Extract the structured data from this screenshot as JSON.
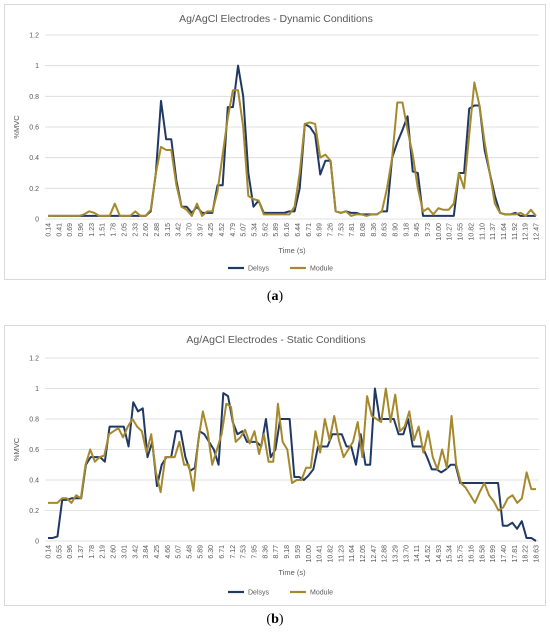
{
  "captions": {
    "a": "a",
    "b": "b"
  },
  "chart_data": [
    {
      "type": "line",
      "title": "Ag/AgCl Electrodes - Dynamic Conditions",
      "xlabel": "Time (s)",
      "ylabel": "%MVC",
      "ylim": [
        0,
        1.2
      ],
      "yticks": [
        "0",
        "0.2",
        "0.4",
        "0.6",
        "0.8",
        "1",
        "1.2"
      ],
      "xtick_labels": [
        "0.14",
        "0.41",
        "0.69",
        "0.96",
        "1.23",
        "1.51",
        "1.78",
        "2.05",
        "2.33",
        "2.60",
        "2.88",
        "3.15",
        "3.42",
        "3.70",
        "3.97",
        "4.25",
        "4.52",
        "4.79",
        "5.07",
        "5.34",
        "5.62",
        "5.89",
        "6.16",
        "6.44",
        "6.71",
        "6.99",
        "7.26",
        "7.53",
        "7.81",
        "8.08",
        "8.36",
        "8.63",
        "8.90",
        "9.18",
        "9.45",
        "9.73",
        "10.00",
        "10.27",
        "10.55",
        "10.82",
        "11.10",
        "11.37",
        "11.64",
        "11.92",
        "12.19",
        "12.47"
      ],
      "grid": true,
      "legend_position": "bottom",
      "series": [
        {
          "name": "Delsys",
          "color": "#203864",
          "values": [
            0.02,
            0.02,
            0.02,
            0.02,
            0.02,
            0.02,
            0.02,
            0.02,
            0.02,
            0.02,
            0.02,
            0.02,
            0.02,
            0.02,
            0.02,
            0.02,
            0.02,
            0.02,
            0.02,
            0.02,
            0.05,
            0.3,
            0.77,
            0.52,
            0.52,
            0.25,
            0.08,
            0.08,
            0.04,
            0.08,
            0.04,
            0.04,
            0.04,
            0.22,
            0.22,
            0.73,
            0.73,
            1.0,
            0.8,
            0.3,
            0.08,
            0.12,
            0.04,
            0.04,
            0.04,
            0.04,
            0.04,
            0.05,
            0.05,
            0.2,
            0.62,
            0.6,
            0.55,
            0.29,
            0.38,
            0.38,
            0.05,
            0.04,
            0.05,
            0.04,
            0.04,
            0.03,
            0.03,
            0.03,
            0.03,
            0.05,
            0.05,
            0.4,
            0.5,
            0.58,
            0.67,
            0.31,
            0.3,
            0.02,
            0.02,
            0.02,
            0.02,
            0.02,
            0.02,
            0.02,
            0.3,
            0.3,
            0.72,
            0.74,
            0.74,
            0.45,
            0.3,
            0.15,
            0.04,
            0.03,
            0.03,
            0.04,
            0.02,
            0.02,
            0.02,
            0.02
          ]
        },
        {
          "name": "Module",
          "color": "#A6892C",
          "values": [
            0.02,
            0.02,
            0.02,
            0.02,
            0.02,
            0.02,
            0.02,
            0.03,
            0.05,
            0.04,
            0.02,
            0.02,
            0.02,
            0.1,
            0.02,
            0.02,
            0.02,
            0.05,
            0.02,
            0.02,
            0.06,
            0.3,
            0.47,
            0.45,
            0.45,
            0.22,
            0.08,
            0.06,
            0.02,
            0.1,
            0.02,
            0.05,
            0.05,
            0.18,
            0.42,
            0.66,
            0.84,
            0.84,
            0.6,
            0.15,
            0.13,
            0.12,
            0.03,
            0.03,
            0.03,
            0.03,
            0.03,
            0.03,
            0.08,
            0.3,
            0.62,
            0.63,
            0.62,
            0.4,
            0.42,
            0.38,
            0.05,
            0.04,
            0.05,
            0.02,
            0.03,
            0.03,
            0.02,
            0.03,
            0.03,
            0.05,
            0.2,
            0.4,
            0.76,
            0.76,
            0.58,
            0.42,
            0.2,
            0.05,
            0.07,
            0.03,
            0.07,
            0.06,
            0.06,
            0.1,
            0.3,
            0.2,
            0.55,
            0.89,
            0.74,
            0.5,
            0.3,
            0.1,
            0.04,
            0.03,
            0.03,
            0.03,
            0.04,
            0.02,
            0.06,
            0.02
          ]
        }
      ]
    },
    {
      "type": "line",
      "title": "Ag/AgCl Electrodes - Static Conditions",
      "xlabel": "Time (s)",
      "ylabel": "%MVC",
      "ylim": [
        0,
        1.2
      ],
      "yticks": [
        "0",
        "0.2",
        "0.4",
        "0.6",
        "0.8",
        "1",
        "1.2"
      ],
      "xtick_labels": [
        "0.14",
        "0.55",
        "0.96",
        "1.37",
        "1.78",
        "2.19",
        "2.60",
        "3.01",
        "3.42",
        "3.84",
        "4.25",
        "4.66",
        "5.07",
        "5.48",
        "5.89",
        "6.30",
        "6.71",
        "7.12",
        "7.53",
        "7.95",
        "8.36",
        "8.77",
        "9.18",
        "9.59",
        "10.00",
        "10.41",
        "10.82",
        "11.23",
        "11.64",
        "12.05",
        "12.47",
        "12.88",
        "13.29",
        "13.70",
        "14.11",
        "14.52",
        "14.93",
        "15.34",
        "15.75",
        "16.16",
        "16.58",
        "16.99",
        "17.40",
        "17.81",
        "18.22",
        "18.63"
      ],
      "grid": true,
      "legend_position": "bottom",
      "series": [
        {
          "name": "Delsys",
          "color": "#203864",
          "values": [
            0.02,
            0.02,
            0.03,
            0.27,
            0.27,
            0.28,
            0.28,
            0.28,
            0.5,
            0.55,
            0.55,
            0.55,
            0.52,
            0.75,
            0.75,
            0.75,
            0.75,
            0.62,
            0.91,
            0.85,
            0.87,
            0.55,
            0.65,
            0.36,
            0.5,
            0.55,
            0.55,
            0.72,
            0.72,
            0.55,
            0.46,
            0.48,
            0.72,
            0.7,
            0.65,
            0.6,
            0.5,
            0.97,
            0.95,
            0.78,
            0.7,
            0.72,
            0.65,
            0.65,
            0.65,
            0.62,
            0.8,
            0.55,
            0.6,
            0.8,
            0.8,
            0.8,
            0.42,
            0.42,
            0.4,
            0.43,
            0.47,
            0.62,
            0.62,
            0.62,
            0.7,
            0.7,
            0.7,
            0.62,
            0.62,
            0.5,
            0.7,
            0.5,
            0.5,
            1.0,
            0.8,
            0.8,
            0.8,
            0.8,
            0.7,
            0.7,
            0.8,
            0.62,
            0.62,
            0.62,
            0.55,
            0.47,
            0.47,
            0.45,
            0.47,
            0.5,
            0.5,
            0.38,
            0.38,
            0.38,
            0.38,
            0.38,
            0.38,
            0.38,
            0.38,
            0.38,
            0.1,
            0.1,
            0.12,
            0.08,
            0.13,
            0.02,
            0.02,
            0.0
          ]
        },
        {
          "name": "Module",
          "color": "#A6892C",
          "values": [
            0.25,
            0.25,
            0.25,
            0.28,
            0.28,
            0.25,
            0.3,
            0.28,
            0.5,
            0.6,
            0.52,
            0.55,
            0.56,
            0.7,
            0.72,
            0.74,
            0.68,
            0.75,
            0.8,
            0.75,
            0.72,
            0.58,
            0.7,
            0.45,
            0.32,
            0.55,
            0.55,
            0.55,
            0.65,
            0.5,
            0.5,
            0.33,
            0.65,
            0.85,
            0.72,
            0.5,
            0.6,
            0.7,
            0.9,
            0.88,
            0.65,
            0.68,
            0.73,
            0.64,
            0.72,
            0.57,
            0.7,
            0.52,
            0.52,
            0.9,
            0.65,
            0.6,
            0.38,
            0.4,
            0.4,
            0.48,
            0.48,
            0.72,
            0.58,
            0.8,
            0.66,
            0.82,
            0.66,
            0.55,
            0.6,
            0.65,
            0.78,
            0.55,
            0.95,
            0.82,
            0.8,
            0.78,
            1.0,
            0.78,
            0.96,
            0.72,
            0.75,
            0.85,
            0.66,
            0.75,
            0.58,
            0.72,
            0.55,
            0.47,
            0.6,
            0.48,
            0.82,
            0.5,
            0.38,
            0.35,
            0.3,
            0.25,
            0.32,
            0.38,
            0.3,
            0.26,
            0.2,
            0.22,
            0.28,
            0.3,
            0.25,
            0.28,
            0.45,
            0.34,
            0.34
          ]
        }
      ]
    }
  ]
}
